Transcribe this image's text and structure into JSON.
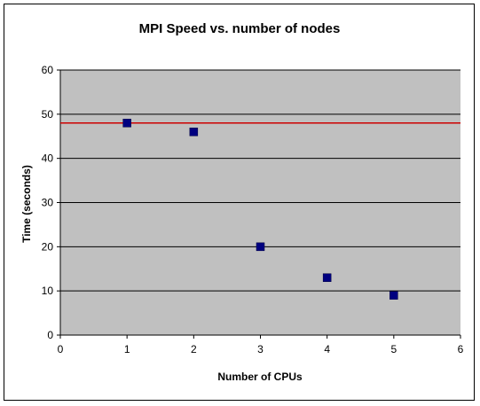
{
  "chart_data": {
    "type": "scatter",
    "title": "MPI Speed vs. number of nodes",
    "xlabel": "Number of CPUs",
    "ylabel": "Time (seconds)",
    "xlim": [
      0,
      6
    ],
    "ylim": [
      0,
      60
    ],
    "x_ticks": [
      "0",
      "1",
      "2",
      "3",
      "4",
      "5",
      "6"
    ],
    "y_ticks": [
      "0",
      "10",
      "20",
      "30",
      "40",
      "50",
      "60"
    ],
    "grid": "horizontal",
    "legend": "none",
    "series": [
      {
        "x": [
          1,
          2,
          3,
          4,
          5
        ],
        "y": [
          48,
          46,
          20,
          13,
          9
        ],
        "marker": "square",
        "color": "#000080"
      }
    ],
    "reference_line": {
      "y": 48,
      "color": "#cc0000"
    },
    "plot_background": "#c0c0c0",
    "gridline_color": "#000000"
  }
}
